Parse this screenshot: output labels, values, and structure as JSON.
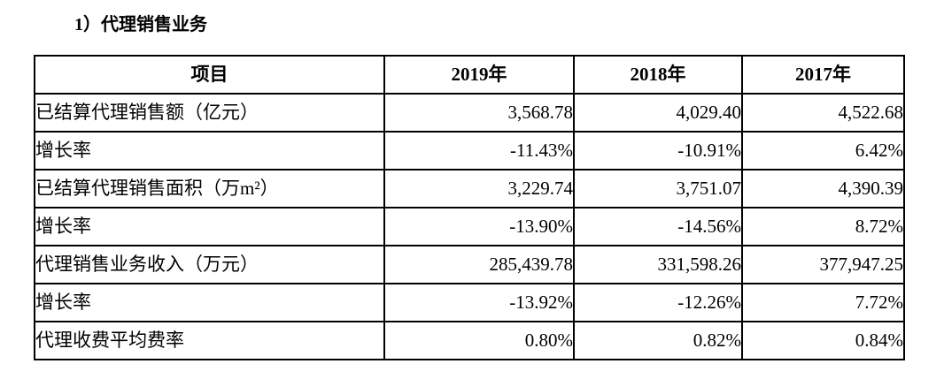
{
  "document": {
    "section_title": "1）代理销售业务"
  },
  "table": {
    "columns": [
      "项目",
      "2019年",
      "2018年",
      "2017年"
    ],
    "rows": [
      {
        "label": "已结算代理销售额（亿元）",
        "values": [
          "3,568.78",
          "4,029.40",
          "4,522.68"
        ]
      },
      {
        "label": "增长率",
        "values": [
          "-11.43%",
          "-10.91%",
          "6.42%"
        ]
      },
      {
        "label": "已结算代理销售面积（万m²）",
        "values": [
          "3,229.74",
          "3,751.07",
          "4,390.39"
        ]
      },
      {
        "label": "增长率",
        "values": [
          "-13.90%",
          "-14.56%",
          "8.72%"
        ]
      },
      {
        "label": "代理销售业务收入（万元）",
        "values": [
          "285,439.78",
          "331,598.26",
          "377,947.25"
        ]
      },
      {
        "label": "增长率",
        "values": [
          "-13.92%",
          "-12.26%",
          "7.72%"
        ]
      },
      {
        "label": "代理收费平均费率",
        "values": [
          "0.80%",
          "0.82%",
          "0.84%"
        ]
      }
    ]
  },
  "colors": {
    "text": "#000000",
    "border": "#000000",
    "background": "#ffffff"
  }
}
